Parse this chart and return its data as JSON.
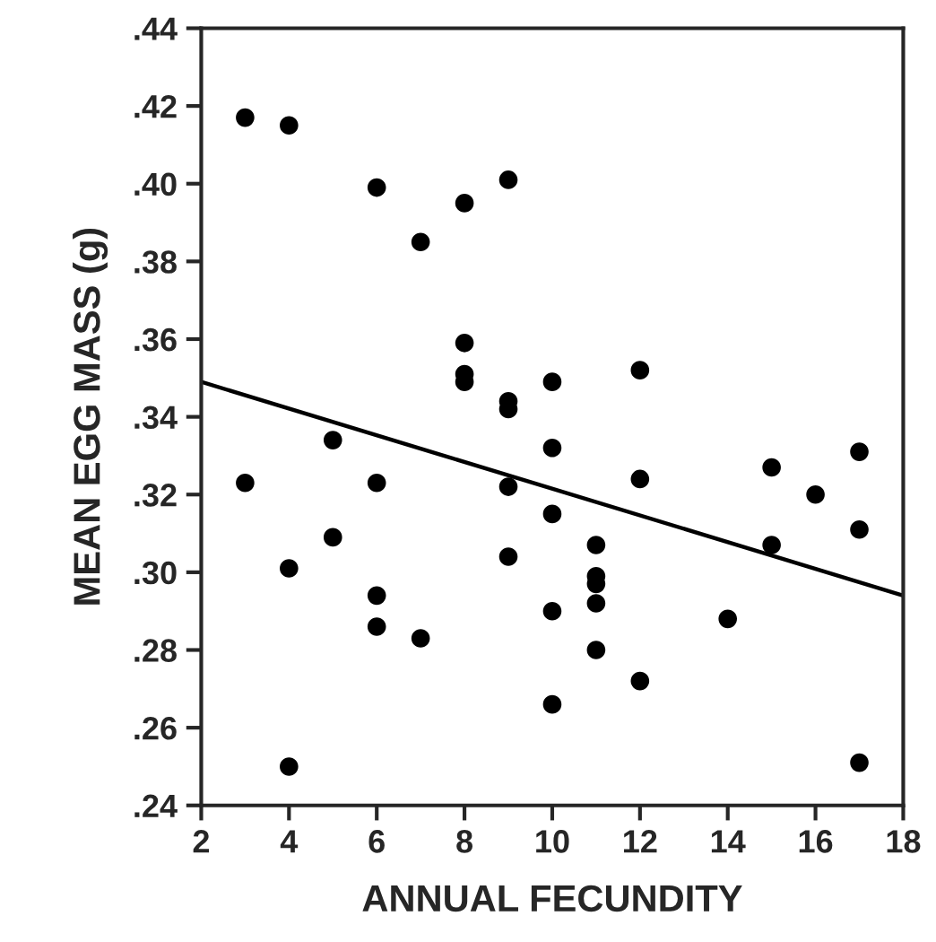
{
  "chart_data": {
    "type": "scatter",
    "xlabel": "ANNUAL FECUNDITY",
    "ylabel": "MEAN EGG MASS (g)",
    "series": [
      {
        "color": "#000000",
        "marker": "circle",
        "x": [
          3,
          3,
          4,
          4,
          4,
          5,
          5,
          6,
          6,
          6,
          6,
          7,
          7,
          8,
          8,
          8,
          8,
          9,
          9,
          9,
          9,
          9,
          10,
          10,
          10,
          10,
          10,
          11,
          11,
          11,
          11,
          11,
          12,
          12,
          12,
          14,
          15,
          15,
          16,
          17,
          17,
          17
        ],
        "values": [
          0.417,
          0.323,
          0.415,
          0.301,
          0.25,
          0.334,
          0.309,
          0.399,
          0.323,
          0.294,
          0.286,
          0.385,
          0.283,
          0.395,
          0.359,
          0.351,
          0.349,
          0.401,
          0.344,
          0.342,
          0.322,
          0.304,
          0.349,
          0.332,
          0.315,
          0.29,
          0.266,
          0.307,
          0.299,
          0.297,
          0.292,
          0.28,
          0.352,
          0.324,
          0.272,
          0.288,
          0.327,
          0.307,
          0.32,
          0.331,
          0.311,
          0.251
        ]
      },
      {
        "type": "line",
        "color": "#000000",
        "marker": "none",
        "line_style": "solid",
        "x": [
          2,
          18
        ],
        "values": [
          0.349,
          0.294
        ]
      }
    ],
    "xlim": [
      2,
      18
    ],
    "xticks": [
      2,
      4,
      6,
      8,
      10,
      12,
      14,
      16,
      18
    ],
    "ylim": [
      0.24,
      0.44
    ],
    "yticks": [
      {
        "value": 0.24,
        "label": ".24"
      },
      {
        "value": 0.26,
        "label": ".26"
      },
      {
        "value": 0.28,
        "label": ".28"
      },
      {
        "value": 0.3,
        "label": ".30"
      },
      {
        "value": 0.32,
        "label": ".32"
      },
      {
        "value": 0.34,
        "label": ".34"
      },
      {
        "value": 0.36,
        "label": ".36"
      },
      {
        "value": 0.38,
        "label": ".38"
      },
      {
        "value": 0.4,
        "label": ".40"
      },
      {
        "value": 0.42,
        "label": ".42"
      },
      {
        "value": 0.44,
        "label": ".44"
      }
    ],
    "grid": false,
    "legend": false
  }
}
